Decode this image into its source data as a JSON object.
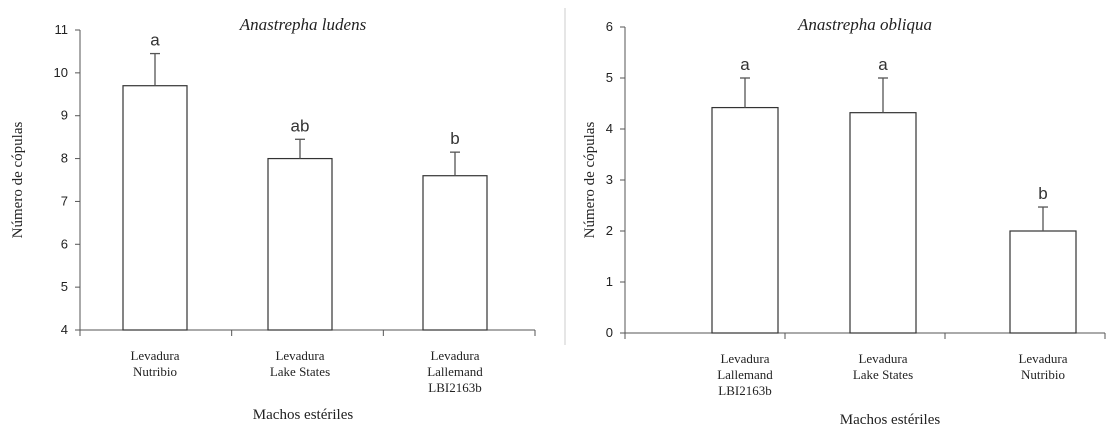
{
  "chart_data": [
    {
      "type": "bar",
      "title": "Anastrepha ludens",
      "xlabel": "Machos estériles",
      "ylabel": "Número de cópulas",
      "ylim": [
        4,
        11
      ],
      "yticks": [
        4,
        5,
        6,
        7,
        8,
        9,
        10,
        11
      ],
      "categories": [
        [
          "Levadura",
          "Nutribio"
        ],
        [
          "Levadura",
          "Lake States"
        ],
        [
          "Levadura",
          "Lallemand",
          "LBI2163b"
        ]
      ],
      "values": [
        9.7,
        8.0,
        7.6
      ],
      "errors": [
        0.75,
        0.45,
        0.55
      ],
      "significance": [
        "a",
        "ab",
        "b"
      ]
    },
    {
      "type": "bar",
      "title": "Anastrepha obliqua",
      "xlabel": "Machos estériles",
      "ylabel": "Número de cópulas",
      "ylim": [
        0,
        6
      ],
      "yticks": [
        0,
        1,
        2,
        3,
        4,
        5,
        6
      ],
      "categories": [
        [
          "Levadura",
          "Lallemand",
          "LBI2163b"
        ],
        [
          "Levadura",
          "Lake States"
        ],
        [
          "Levadura",
          "Nutribio"
        ]
      ],
      "values": [
        4.42,
        4.32,
        2.0
      ],
      "errors": [
        0.58,
        0.68,
        0.47
      ],
      "significance": [
        "a",
        "a",
        "b"
      ]
    }
  ]
}
